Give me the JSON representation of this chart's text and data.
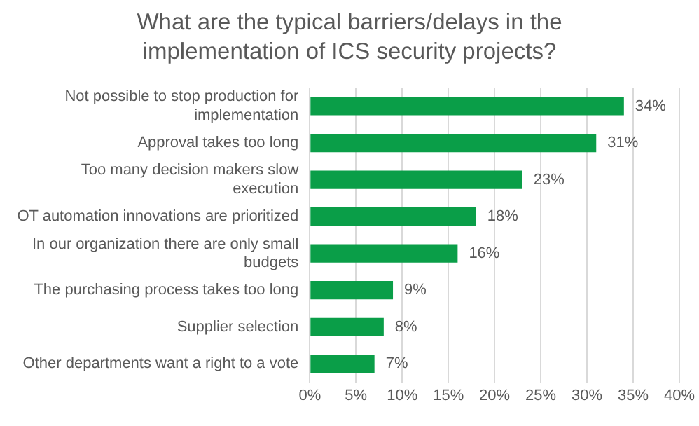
{
  "chart_data": {
    "type": "bar",
    "orientation": "horizontal",
    "title": "What are the typical barriers/delays in the implementation of ICS security projects?",
    "categories": [
      "Not possible to stop production for implementation",
      "Approval takes too long",
      "Too many decision makers slow execution",
      "OT automation innovations are prioritized",
      "In our organization there are only small budgets",
      "The purchasing process takes too long",
      "Supplier selection",
      "Other departments want a right to a vote"
    ],
    "values": [
      34,
      31,
      23,
      18,
      16,
      9,
      8,
      7
    ],
    "color": "#0a9e48",
    "value_labels": [
      "34%",
      "31%",
      "23%",
      "18%",
      "16%",
      "9%",
      "8%",
      "7%"
    ],
    "xlim": [
      0,
      40
    ],
    "xticks": [
      {
        "value": 0,
        "label": "0%"
      },
      {
        "value": 5,
        "label": "5%"
      },
      {
        "value": 10,
        "label": "10%"
      },
      {
        "value": 15,
        "label": "15%"
      },
      {
        "value": 20,
        "label": "20%"
      },
      {
        "value": 25,
        "label": "25%"
      },
      {
        "value": 30,
        "label": "30%"
      },
      {
        "value": 35,
        "label": "35%"
      },
      {
        "value": 40,
        "label": "40%"
      }
    ],
    "grid": "x",
    "legend": false
  }
}
